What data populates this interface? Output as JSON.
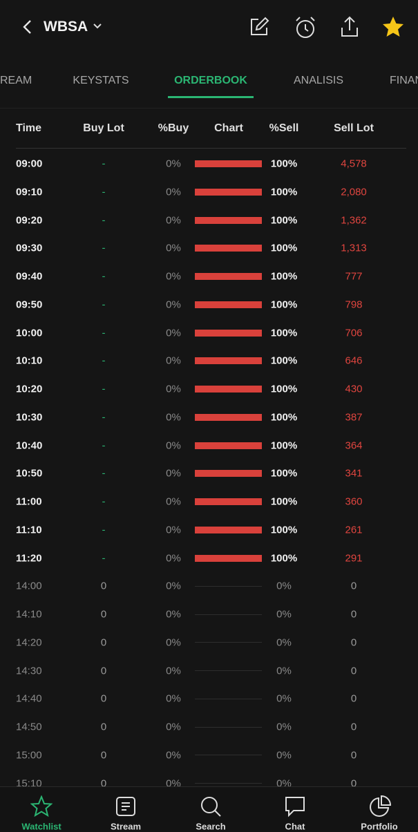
{
  "header": {
    "ticker": "WBSA"
  },
  "tabs": [
    "REAM",
    "KEYSTATS",
    "ORDERBOOK",
    "ANALISIS",
    "FINAN"
  ],
  "table": {
    "columns": [
      "Time",
      "Buy Lot",
      "%Buy",
      "Chart",
      "%Sell",
      "Sell Lot"
    ],
    "rows": [
      [
        "09:00",
        "-",
        "0%",
        "100%",
        "4,578"
      ],
      [
        "09:10",
        "-",
        "0%",
        "100%",
        "2,080"
      ],
      [
        "09:20",
        "-",
        "0%",
        "100%",
        "1,362"
      ],
      [
        "09:30",
        "-",
        "0%",
        "100%",
        "1,313"
      ],
      [
        "09:40",
        "-",
        "0%",
        "100%",
        "777"
      ],
      [
        "09:50",
        "-",
        "0%",
        "100%",
        "798"
      ],
      [
        "10:00",
        "-",
        "0%",
        "100%",
        "706"
      ],
      [
        "10:10",
        "-",
        "0%",
        "100%",
        "646"
      ],
      [
        "10:20",
        "-",
        "0%",
        "100%",
        "430"
      ],
      [
        "10:30",
        "-",
        "0%",
        "100%",
        "387"
      ],
      [
        "10:40",
        "-",
        "0%",
        "100%",
        "364"
      ],
      [
        "10:50",
        "-",
        "0%",
        "100%",
        "341"
      ],
      [
        "11:00",
        "-",
        "0%",
        "100%",
        "360"
      ],
      [
        "11:10",
        "-",
        "0%",
        "100%",
        "261"
      ],
      [
        "11:20",
        "-",
        "0%",
        "100%",
        "291"
      ],
      [
        "14:00",
        "0",
        "0%",
        "0%",
        "0"
      ],
      [
        "14:10",
        "0",
        "0%",
        "0%",
        "0"
      ],
      [
        "14:20",
        "0",
        "0%",
        "0%",
        "0"
      ],
      [
        "14:30",
        "0",
        "0%",
        "0%",
        "0"
      ],
      [
        "14:40",
        "0",
        "0%",
        "0%",
        "0"
      ],
      [
        "14:50",
        "0",
        "0%",
        "0%",
        "0"
      ],
      [
        "15:00",
        "0",
        "0%",
        "0%",
        "0"
      ],
      [
        "15:10",
        "0",
        "0%",
        "0%",
        "0"
      ]
    ]
  },
  "nav": [
    "Watchlist",
    "Stream",
    "Search",
    "Chat",
    "Portfolio"
  ]
}
